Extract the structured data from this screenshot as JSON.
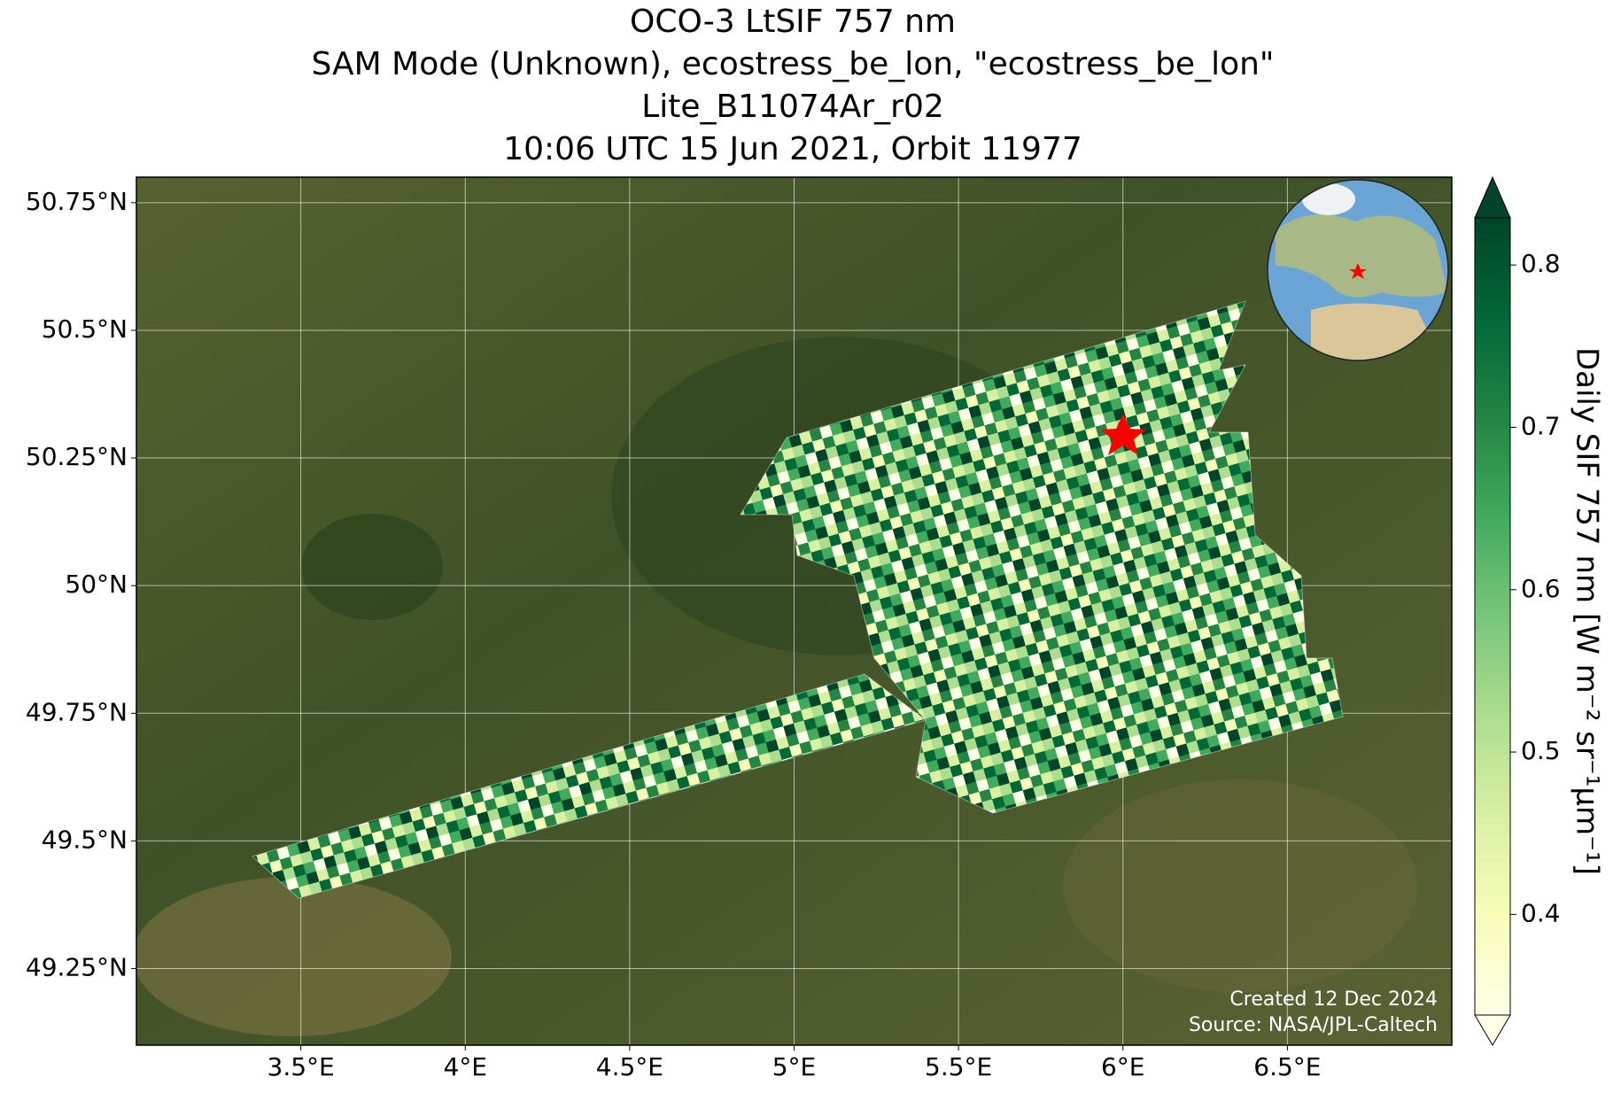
{
  "title": [
    "OCO-3 LtSIF 757 nm",
    "SAM Mode (Unknown), ecostress_be_lon, \"ecostress_be_lon\"",
    "Lite_B11074Ar_r02",
    "10:06 UTC 15 Jun 2021, Orbit 11977"
  ],
  "map": {
    "xlim": [
      3.0,
      7.0
    ],
    "ylim": [
      49.1,
      50.8
    ],
    "xticks": [
      {
        "value": 3.5,
        "label": "3.5°E"
      },
      {
        "value": 4,
        "label": "4°E"
      },
      {
        "value": 4.5,
        "label": "4.5°E"
      },
      {
        "value": 5,
        "label": "5°E"
      },
      {
        "value": 5.5,
        "label": "5.5°E"
      },
      {
        "value": 6,
        "label": "6°E"
      },
      {
        "value": 6.5,
        "label": "6.5°E"
      }
    ],
    "yticks": [
      {
        "value": 49.25,
        "label": "49.25°N"
      },
      {
        "value": 49.5,
        "label": "49.5°N"
      },
      {
        "value": 49.75,
        "label": "49.75°N"
      },
      {
        "value": 50,
        "label": "50°N"
      },
      {
        "value": 50.25,
        "label": "50.25°N"
      },
      {
        "value": 50.5,
        "label": "50.5°N"
      },
      {
        "value": 50.75,
        "label": "50.75°N"
      }
    ],
    "grid": true
  },
  "colorbar": {
    "label": "Daily SIF 757 nm [W m⁻² sr⁻¹μm⁻¹]",
    "lim": [
      0.338,
      0.829
    ],
    "ticks": [
      0.4,
      0.5,
      0.6,
      0.7,
      0.8
    ],
    "colors": [
      "#ffffe5",
      "#f7fcb9",
      "#d9f0a3",
      "#addd8e",
      "#78c679",
      "#41ab5d",
      "#238443",
      "#006837",
      "#004529"
    ]
  },
  "credits": [
    "Created 12 Dec 2024",
    "Source: NASA/JPL-Caltech"
  ]
}
